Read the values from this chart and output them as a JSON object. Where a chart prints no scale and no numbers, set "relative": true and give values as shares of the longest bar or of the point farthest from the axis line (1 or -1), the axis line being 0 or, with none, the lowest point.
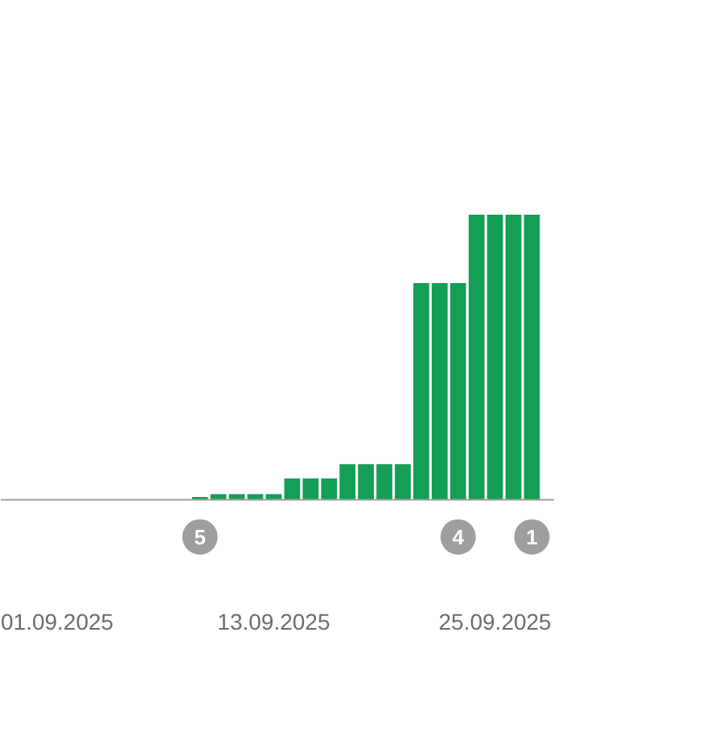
{
  "chart_data": {
    "type": "bar",
    "relative": true,
    "color": "#159e56",
    "x": [
      "2025-09-01",
      "2025-09-02",
      "2025-09-03",
      "2025-09-04",
      "2025-09-05",
      "2025-09-06",
      "2025-09-07",
      "2025-09-08",
      "2025-09-09",
      "2025-09-10",
      "2025-09-11",
      "2025-09-12",
      "2025-09-13",
      "2025-09-14",
      "2025-09-15",
      "2025-09-16",
      "2025-09-17",
      "2025-09-18",
      "2025-09-19",
      "2025-09-20",
      "2025-09-21",
      "2025-09-22",
      "2025-09-23",
      "2025-09-24",
      "2025-09-25",
      "2025-09-26",
      "2025-09-27"
    ],
    "values": [
      0,
      0,
      0,
      0,
      0,
      0,
      0,
      0,
      0.01,
      0.02,
      0.02,
      0.02,
      0.02,
      0.075,
      0.075,
      0.075,
      0.125,
      0.125,
      0.125,
      0.125,
      0.76,
      0.76,
      0.76,
      1,
      1,
      1,
      1
    ],
    "xticks": [
      {
        "value": "2025-09-01",
        "label": "01.09.2025"
      },
      {
        "value": "2025-09-13",
        "label": "13.09.2025"
      },
      {
        "value": "2025-09-25",
        "label": "25.09.2025"
      }
    ],
    "xlim": [
      "2025-08-29T04:48",
      "2025-09-28T04:48"
    ],
    "annotations": [
      {
        "text": "5",
        "x": "2025-09-09",
        "y": 0
      },
      {
        "text": "4",
        "x": "2025-09-23",
        "y": 0
      },
      {
        "text": "1",
        "x": "2025-09-27",
        "y": 0
      }
    ]
  }
}
